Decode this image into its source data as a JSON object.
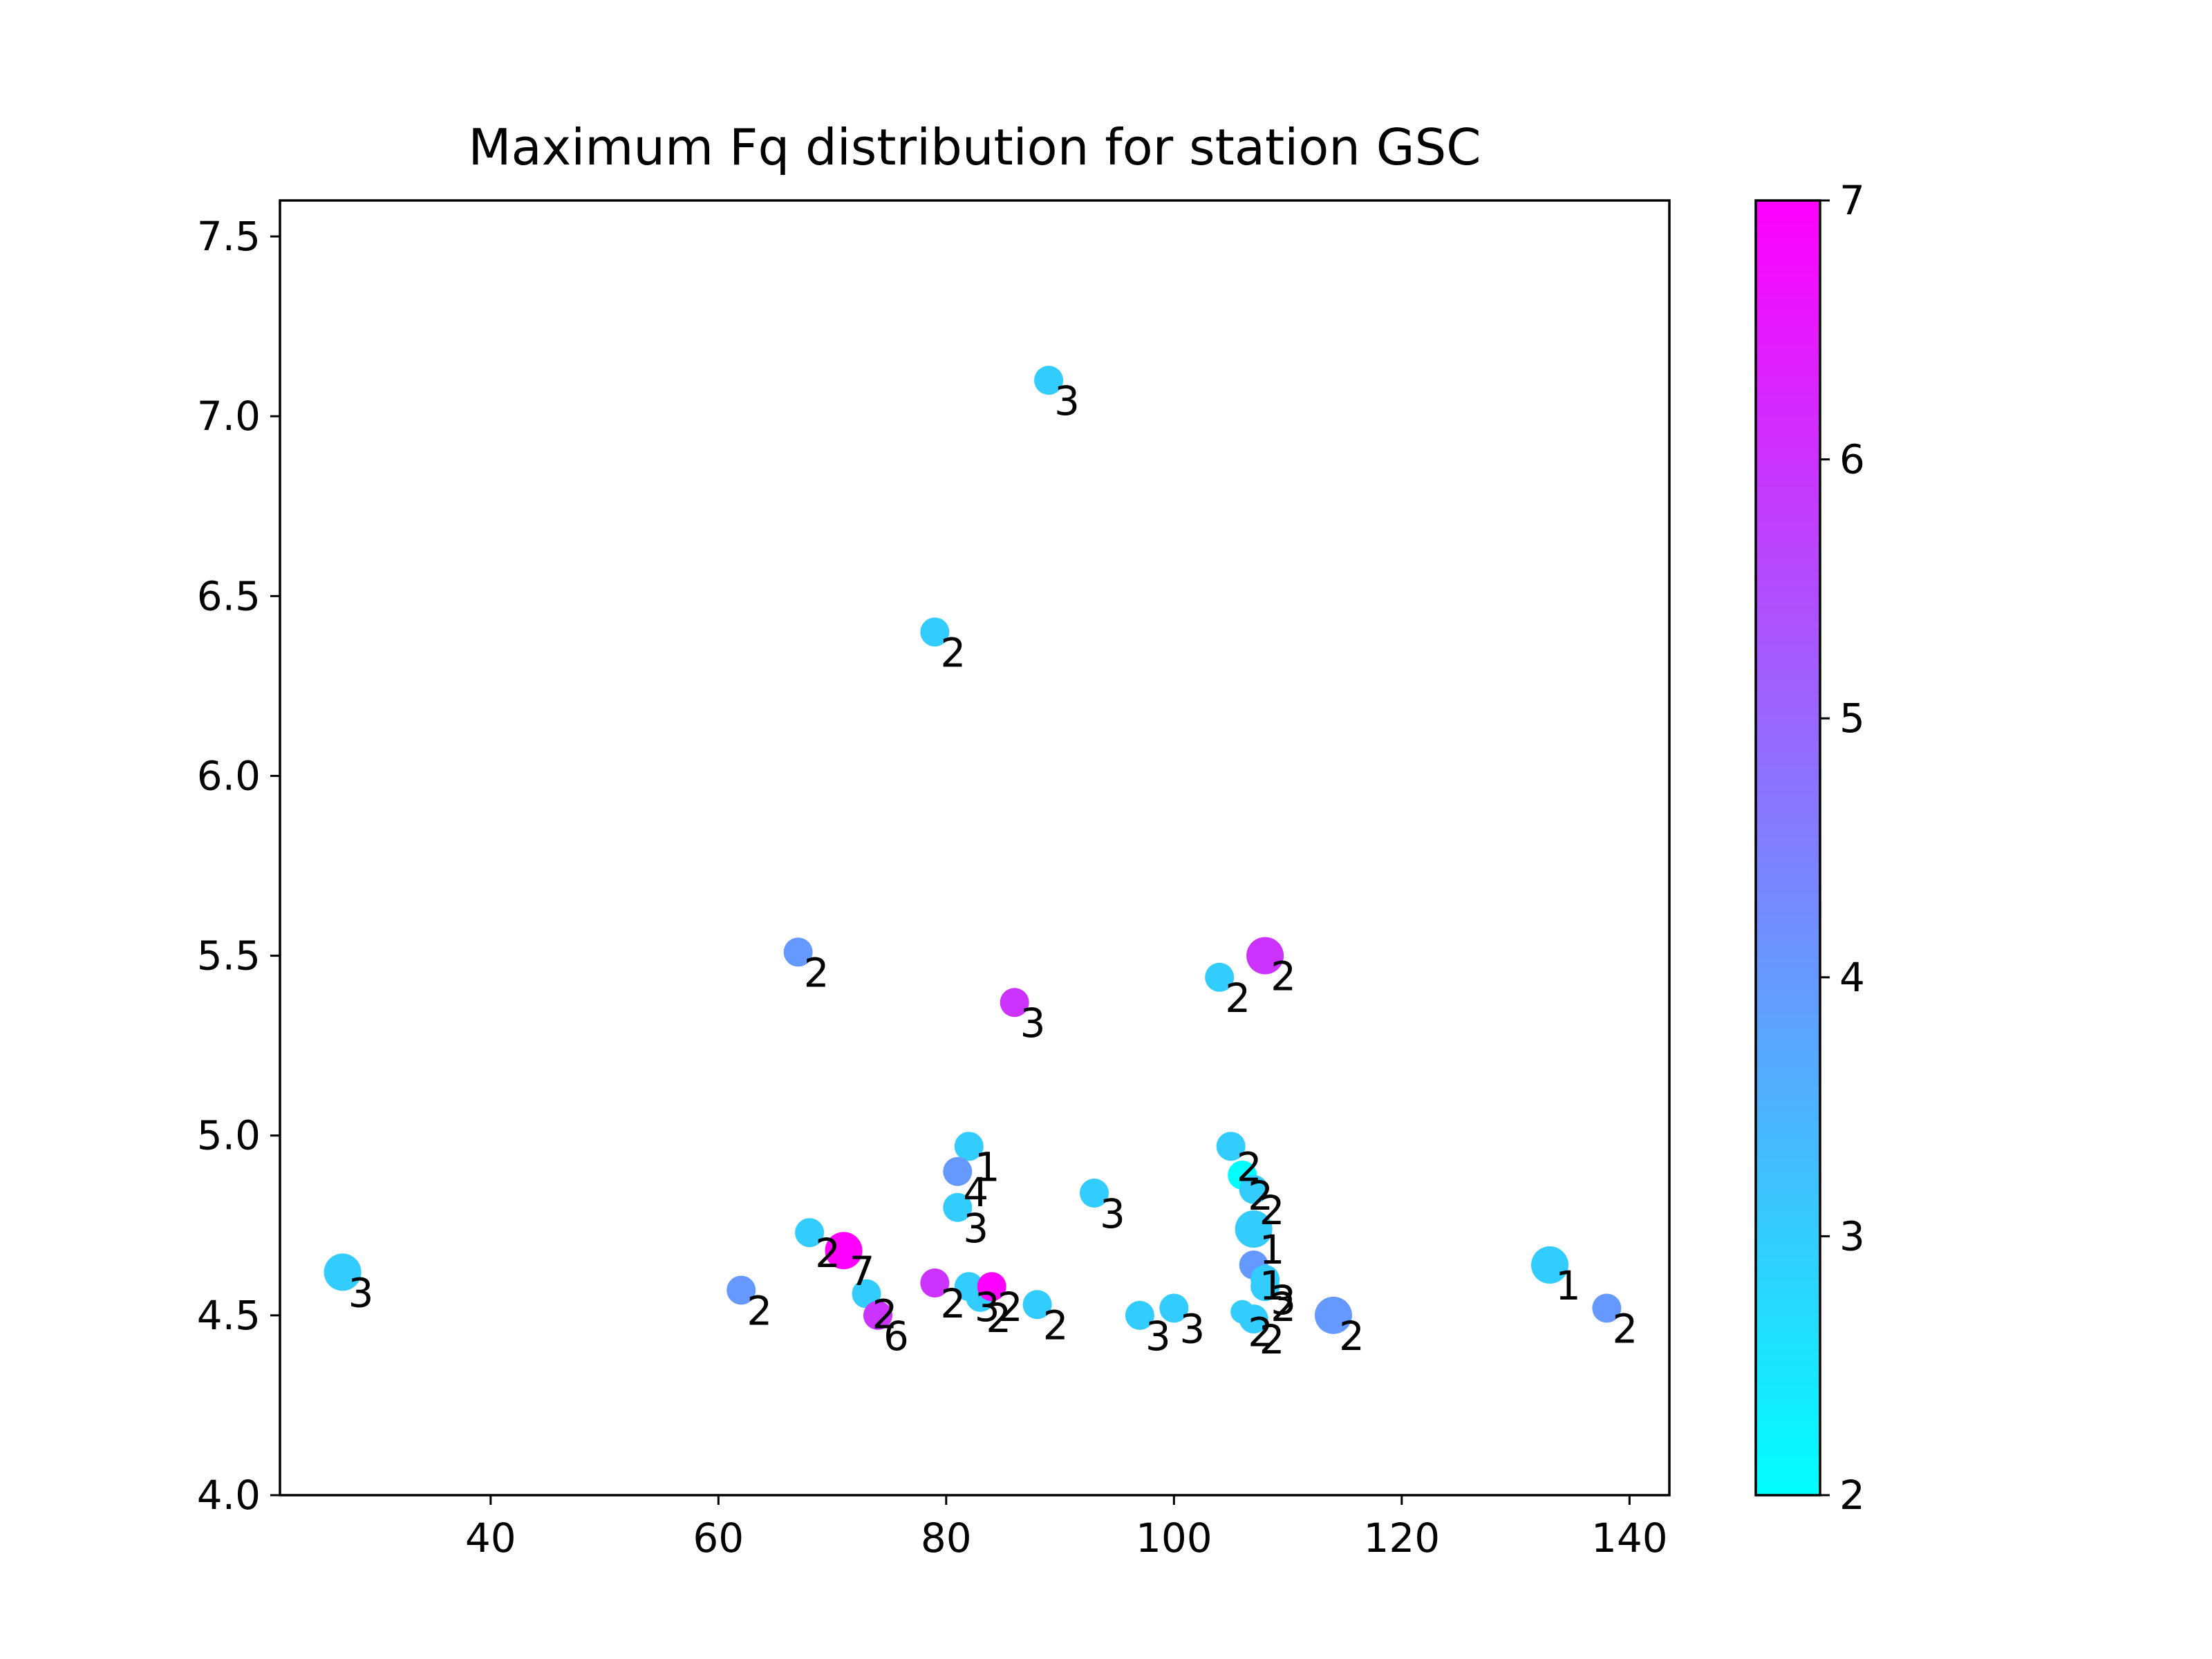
{
  "chart_data": {
    "type": "scatter",
    "title": "Maximum Fq distribution for station GSC",
    "xlabel": "",
    "ylabel": "",
    "xlim": [
      21.5,
      143.5
    ],
    "ylim": [
      4.0,
      7.6
    ],
    "xticks": [
      "40",
      "60",
      "80",
      "100",
      "120",
      "140"
    ],
    "yticks": [
      "4.0",
      "4.5",
      "5.0",
      "5.5",
      "6.0",
      "6.5",
      "7.0",
      "7.5"
    ],
    "grid": false,
    "colorbar": {
      "min": 2,
      "max": 7,
      "ticks": [
        "2",
        "3",
        "4",
        "5",
        "6",
        "7"
      ],
      "colormap": "cool",
      "color_low": "#00ffff",
      "color_high": "#ff00ff"
    },
    "points": [
      {
        "x": 27,
        "y": 4.62,
        "c": 3.0,
        "size": 3,
        "label": "3"
      },
      {
        "x": 89,
        "y": 7.1,
        "c": 3.0,
        "size": 2,
        "label": "3"
      },
      {
        "x": 79,
        "y": 6.4,
        "c": 3.0,
        "size": 2,
        "label": "2"
      },
      {
        "x": 67,
        "y": 5.51,
        "c": 4.0,
        "size": 2,
        "label": "2"
      },
      {
        "x": 108,
        "y": 5.5,
        "c": 6.0,
        "size": 3,
        "label": "2"
      },
      {
        "x": 104,
        "y": 5.44,
        "c": 3.0,
        "size": 2,
        "label": "2"
      },
      {
        "x": 86,
        "y": 5.37,
        "c": 6.0,
        "size": 2,
        "label": "3"
      },
      {
        "x": 82,
        "y": 4.97,
        "c": 3.0,
        "size": 2,
        "label": "1"
      },
      {
        "x": 81,
        "y": 4.9,
        "c": 4.0,
        "size": 2,
        "label": "4"
      },
      {
        "x": 81,
        "y": 4.8,
        "c": 3.0,
        "size": 2,
        "label": "3"
      },
      {
        "x": 93,
        "y": 4.84,
        "c": 3.0,
        "size": 2,
        "label": "3"
      },
      {
        "x": 105,
        "y": 4.97,
        "c": 3.0,
        "size": 2,
        "label": "2"
      },
      {
        "x": 106,
        "y": 4.89,
        "c": 2.0,
        "size": 2,
        "label": "2"
      },
      {
        "x": 107,
        "y": 4.85,
        "c": 3.0,
        "size": 2,
        "label": "2"
      },
      {
        "x": 107,
        "y": 4.74,
        "c": 3.0,
        "size": 3,
        "label": "1"
      },
      {
        "x": 107,
        "y": 4.64,
        "c": 4.0,
        "size": 2,
        "label": "1"
      },
      {
        "x": 108,
        "y": 4.6,
        "c": 3.0,
        "size": 2,
        "label": "3"
      },
      {
        "x": 108,
        "y": 4.58,
        "c": 3.0,
        "size": 2,
        "label": "2"
      },
      {
        "x": 68,
        "y": 4.73,
        "c": 3.0,
        "size": 2,
        "label": "2"
      },
      {
        "x": 71,
        "y": 4.68,
        "c": 7.0,
        "size": 3,
        "label": "7"
      },
      {
        "x": 73,
        "y": 4.56,
        "c": 3.0,
        "size": 2,
        "label": "2"
      },
      {
        "x": 74,
        "y": 4.5,
        "c": 6.0,
        "size": 2,
        "label": "6"
      },
      {
        "x": 62,
        "y": 4.57,
        "c": 4.0,
        "size": 2,
        "label": "2"
      },
      {
        "x": 79,
        "y": 4.59,
        "c": 6.0,
        "size": 2,
        "label": "2"
      },
      {
        "x": 82,
        "y": 4.58,
        "c": 3.0,
        "size": 2,
        "label": "3"
      },
      {
        "x": 83,
        "y": 4.55,
        "c": 3.0,
        "size": 2,
        "label": "2"
      },
      {
        "x": 84,
        "y": 4.58,
        "c": 7.0,
        "size": 2,
        "label": "2"
      },
      {
        "x": 88,
        "y": 4.53,
        "c": 3.0,
        "size": 2,
        "label": "2"
      },
      {
        "x": 97,
        "y": 4.5,
        "c": 3.0,
        "size": 2,
        "label": "3"
      },
      {
        "x": 100,
        "y": 4.52,
        "c": 3.0,
        "size": 2,
        "label": "3"
      },
      {
        "x": 106,
        "y": 4.51,
        "c": 3.0,
        "size": 1,
        "label": "2"
      },
      {
        "x": 107,
        "y": 4.49,
        "c": 3.0,
        "size": 2,
        "label": "2"
      },
      {
        "x": 114,
        "y": 4.5,
        "c": 4.0,
        "size": 3,
        "label": "2"
      },
      {
        "x": 133,
        "y": 4.64,
        "c": 3.0,
        "size": 3,
        "label": "1"
      },
      {
        "x": 138,
        "y": 4.52,
        "c": 4.0,
        "size": 2,
        "label": "2"
      }
    ]
  }
}
